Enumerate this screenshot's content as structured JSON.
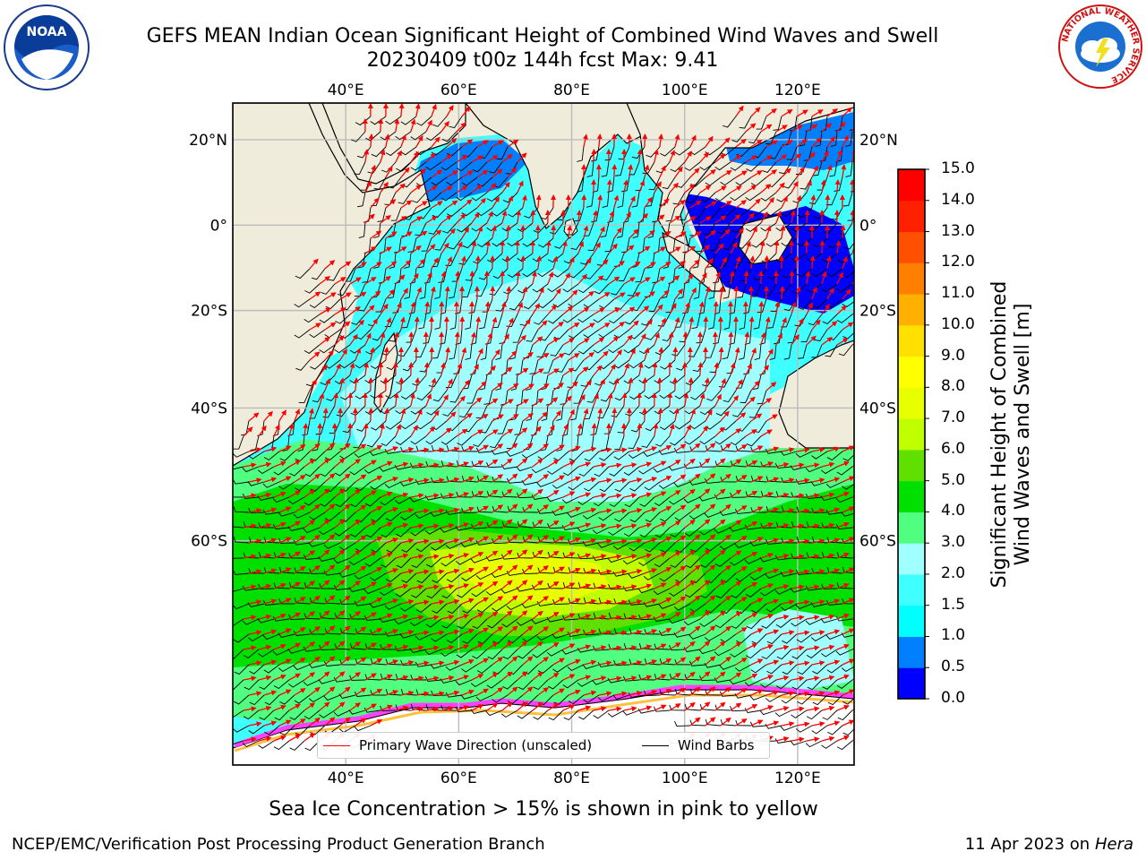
{
  "header": {
    "title_line1": "GEFS MEAN Indian Ocean Significant Height of Combined Wind Waves and Swell",
    "title_line2": "20230409 t00z 144h fcst   Max: 9.41"
  },
  "map": {
    "lon_ticks": [
      "40°E",
      "60°E",
      "80°E",
      "100°E",
      "120°E"
    ],
    "lon_values": [
      40,
      60,
      80,
      100,
      120
    ],
    "lat_ticks": [
      "20°N",
      "0°",
      "20°S",
      "40°S",
      "60°S"
    ],
    "lat_values": [
      20,
      0,
      -20,
      -40,
      -60
    ],
    "lon_range": [
      20,
      130
    ],
    "lat_range": [
      28,
      -78
    ],
    "colors": {
      "land": "#efecdc",
      "coast": "#000000",
      "wave_arrow": "#ff0000",
      "wind_barb": "#000000",
      "grid": "#bbbbbb"
    }
  },
  "legend": {
    "wave_label": "Primary Wave Direction (unscaled)",
    "wind_label": "Wind Barbs",
    "wave_color": "#ff0000",
    "wind_color": "#000000"
  },
  "colorbar": {
    "title_line1": "Significant Height of Combined",
    "title_line2": "Wind Waves and Swell [m]",
    "levels": [
      "0.0",
      "0.5",
      "1.0",
      "1.5",
      "2.0",
      "3.0",
      "4.0",
      "5.0",
      "6.0",
      "7.0",
      "8.0",
      "9.0",
      "10.0",
      "11.0",
      "12.0",
      "13.0",
      "14.0",
      "15.0"
    ],
    "colors": [
      "#0000ff",
      "#0080ff",
      "#00ffff",
      "#40ffff",
      "#a0ffff",
      "#50ff80",
      "#00e000",
      "#60e000",
      "#c0ff00",
      "#e8ff00",
      "#ffff00",
      "#ffe000",
      "#ffb000",
      "#ff8000",
      "#ff5000",
      "#ff2000",
      "#ff0000"
    ]
  },
  "caption": "Sea Ice Concentration > 15% is shown in pink to yellow",
  "footer": {
    "left": "NCEP/EMC/Verification Post Processing Product Generation Branch",
    "date": "11 Apr 2023 on ",
    "host": "Hera"
  },
  "logos": {
    "noaa_text": "NOAA",
    "nws_ring_text": "NATIONAL WEATHER SERVICE"
  }
}
